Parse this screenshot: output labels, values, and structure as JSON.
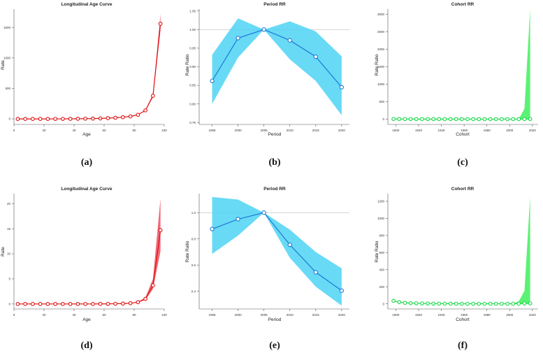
{
  "chart_data": [
    {
      "id": "a",
      "panel_label": "(a)",
      "type": "line",
      "title": "Longitudinal Age Curve",
      "xlabel": "Age",
      "ylabel": "Rate",
      "xlim": [
        0,
        100
      ],
      "ylim": [
        -90,
        1800
      ],
      "xticks": [
        0,
        20,
        40,
        60,
        80,
        100
      ],
      "yticks": [
        0,
        500,
        1000,
        1500
      ],
      "series": [
        {
          "name": "Longitudinal Age Curve",
          "x": [
            2.5,
            7.5,
            12.5,
            17.5,
            22.5,
            27.5,
            32.5,
            37.5,
            42.5,
            47.5,
            52.5,
            57.5,
            62.5,
            67.5,
            72.5,
            77.5,
            82.5,
            87.5,
            92.5,
            97.5
          ],
          "y": [
            0,
            0,
            0,
            0,
            0,
            1,
            1,
            2,
            3,
            4,
            6,
            9,
            13,
            19,
            28,
            42,
            68,
            140,
            380,
            1560
          ],
          "lower": [
            0,
            0,
            0,
            0,
            0,
            1,
            1,
            2,
            3,
            4,
            6,
            9,
            13,
            19,
            28,
            42,
            68,
            130,
            355,
            1450
          ],
          "upper": [
            0,
            0,
            0,
            0,
            0,
            1,
            1,
            2,
            3,
            4,
            6,
            9,
            13,
            19,
            28,
            42,
            68,
            150,
            405,
            1720
          ]
        }
      ],
      "colors": {
        "line": "#dd1111",
        "band": "#f04e5e"
      }
    },
    {
      "id": "b",
      "panel_label": "(b)",
      "type": "line",
      "title": "Period RR",
      "xlabel": "Period",
      "ylabel": "Rate Ratio",
      "xlim": [
        1992.5,
        2021.5
      ],
      "ylim": [
        0.745,
        1.055
      ],
      "xticks": [
        1995,
        2000,
        2005,
        2010,
        2015,
        2020
      ],
      "yticks": [
        0.75,
        0.8,
        0.85,
        0.9,
        0.95,
        1.0,
        1.05
      ],
      "ytick_labels": [
        "0.75",
        "0.80",
        "0.85",
        "0.90",
        "0.95",
        "1.00",
        "1.05"
      ],
      "reference_line": 1.0,
      "series": [
        {
          "name": "Period RR",
          "x": [
            1995,
            2000,
            2005,
            2010,
            2015,
            2020
          ],
          "y": [
            0.862,
            0.977,
            1.0,
            0.971,
            0.927,
            0.845
          ],
          "lower": [
            0.8,
            0.925,
            1.0,
            0.92,
            0.862,
            0.77
          ],
          "upper": [
            0.932,
            1.03,
            1.0,
            1.022,
            0.995,
            0.928
          ]
        }
      ],
      "colors": {
        "line": "#1f78d4",
        "band": "#4dd3f5"
      }
    },
    {
      "id": "c",
      "panel_label": "(c)",
      "type": "line",
      "title": "Cohort RR",
      "xlabel": "Cohort",
      "ylabel": "Rate Ratio",
      "xlim": [
        1893,
        2025
      ],
      "ylim": [
        -150,
        3150
      ],
      "xticks": [
        1900,
        1920,
        1940,
        1960,
        1980,
        2000,
        2020
      ],
      "yticks": [
        0,
        500,
        1000,
        1500,
        2000,
        2500,
        3000
      ],
      "series": [
        {
          "name": "Cohort RR",
          "x": [
            1898,
            1903,
            1908,
            1913,
            1918,
            1923,
            1928,
            1933,
            1938,
            1943,
            1948,
            1953,
            1958,
            1963,
            1968,
            1973,
            1978,
            1983,
            1988,
            1993,
            1998,
            2003,
            2008,
            2013,
            2018
          ],
          "y": [
            5,
            5,
            4,
            4,
            3,
            3,
            3,
            2,
            2,
            2,
            2,
            1,
            1,
            1,
            1,
            1,
            1,
            1,
            1,
            1,
            1,
            1,
            2,
            4,
            5
          ],
          "lower": [
            5,
            5,
            4,
            4,
            3,
            3,
            3,
            2,
            2,
            2,
            2,
            1,
            1,
            1,
            1,
            1,
            1,
            1,
            1,
            1,
            1,
            1,
            2,
            0,
            0
          ],
          "upper": [
            5,
            5,
            4,
            4,
            3,
            3,
            3,
            2,
            2,
            2,
            2,
            1,
            1,
            1,
            1,
            1,
            1,
            1,
            1,
            1,
            1,
            1,
            2,
            300,
            3150
          ]
        }
      ],
      "colors": {
        "line": "#19d94a",
        "band": "#3ef05a"
      }
    },
    {
      "id": "d",
      "panel_label": "(d)",
      "type": "line",
      "title": "Longitudinal Age Curve",
      "xlabel": "Age",
      "ylabel": "Rate",
      "xlim": [
        0,
        100
      ],
      "ylim": [
        -1,
        22
      ],
      "xticks": [
        0,
        20,
        40,
        60,
        80,
        100
      ],
      "yticks": [
        0,
        5,
        10,
        15,
        20
      ],
      "series": [
        {
          "name": "Longitudinal Age Curve",
          "x": [
            2.5,
            7.5,
            12.5,
            17.5,
            22.5,
            27.5,
            32.5,
            37.5,
            42.5,
            47.5,
            52.5,
            57.5,
            62.5,
            67.5,
            72.5,
            77.5,
            82.5,
            87.5,
            92.5,
            97.5
          ],
          "y": [
            0,
            0,
            0,
            0,
            0,
            0,
            0,
            0,
            0,
            0,
            0,
            0.01,
            0.02,
            0.04,
            0.08,
            0.15,
            0.35,
            1.0,
            3.7,
            14.7
          ],
          "lower": [
            0,
            0,
            0,
            0,
            0,
            0,
            0,
            0,
            0,
            0,
            0,
            0.01,
            0.02,
            0.04,
            0.08,
            0.15,
            0.3,
            0.8,
            3.0,
            10.5
          ],
          "upper": [
            0,
            0,
            0,
            0,
            0,
            0,
            0,
            0,
            0,
            0,
            0,
            0.01,
            0.02,
            0.04,
            0.08,
            0.15,
            0.4,
            1.3,
            5.0,
            21.0
          ]
        }
      ],
      "colors": {
        "line": "#dd1111",
        "band": "#f04e5e"
      }
    },
    {
      "id": "e",
      "panel_label": "(e)",
      "type": "line",
      "title": "Period RR",
      "xlabel": "Period",
      "ylabel": "Rate Ratio",
      "xlim": [
        1992.5,
        2021.5
      ],
      "ylim": [
        0.265,
        1.145
      ],
      "xticks": [
        1995,
        2000,
        2005,
        2010,
        2015,
        2020
      ],
      "yticks": [
        0.4,
        0.6,
        0.8,
        1.0
      ],
      "ytick_labels": [
        "0.4",
        "0.6",
        "0.8",
        "1.0"
      ],
      "reference_line": 1.0,
      "series": [
        {
          "name": "Period RR",
          "x": [
            1995,
            2000,
            2005,
            2010,
            2015,
            2020
          ],
          "y": [
            0.875,
            0.95,
            1.0,
            0.755,
            0.545,
            0.405
          ],
          "lower": [
            0.685,
            0.825,
            1.0,
            0.655,
            0.435,
            0.29
          ],
          "upper": [
            1.12,
            1.1,
            1.0,
            0.87,
            0.7,
            0.575
          ]
        }
      ],
      "colors": {
        "line": "#1f78d4",
        "band": "#4dd3f5"
      }
    },
    {
      "id": "f",
      "panel_label": "(f)",
      "type": "line",
      "title": "Cohort RR",
      "xlabel": "Cohort",
      "ylabel": "Rate Ratio",
      "xlim": [
        1893,
        2025
      ],
      "ylim": [
        -60,
        1290
      ],
      "xticks": [
        1900,
        1920,
        1940,
        1960,
        1980,
        2000,
        2020
      ],
      "yticks": [
        0,
        200,
        400,
        600,
        800,
        1000,
        1200
      ],
      "series": [
        {
          "name": "Cohort RR",
          "x": [
            1898,
            1903,
            1908,
            1913,
            1918,
            1923,
            1928,
            1933,
            1938,
            1943,
            1948,
            1953,
            1958,
            1963,
            1968,
            1973,
            1978,
            1983,
            1988,
            1993,
            1998,
            2003,
            2008,
            2013,
            2018
          ],
          "y": [
            35,
            20,
            12,
            8,
            6,
            5,
            4,
            3,
            3,
            2,
            2,
            2,
            1,
            1,
            1,
            1,
            1,
            1,
            1,
            1,
            1,
            1,
            2,
            4,
            6
          ],
          "lower": [
            35,
            20,
            12,
            8,
            6,
            5,
            4,
            3,
            3,
            2,
            2,
            2,
            1,
            1,
            1,
            1,
            1,
            1,
            1,
            1,
            1,
            1,
            2,
            0,
            0
          ],
          "upper": [
            35,
            20,
            12,
            8,
            6,
            5,
            4,
            3,
            3,
            2,
            2,
            2,
            1,
            1,
            1,
            1,
            1,
            1,
            1,
            1,
            1,
            1,
            30,
            150,
            1250
          ]
        }
      ],
      "colors": {
        "line": "#19d94a",
        "band": "#3ef05a"
      }
    }
  ]
}
